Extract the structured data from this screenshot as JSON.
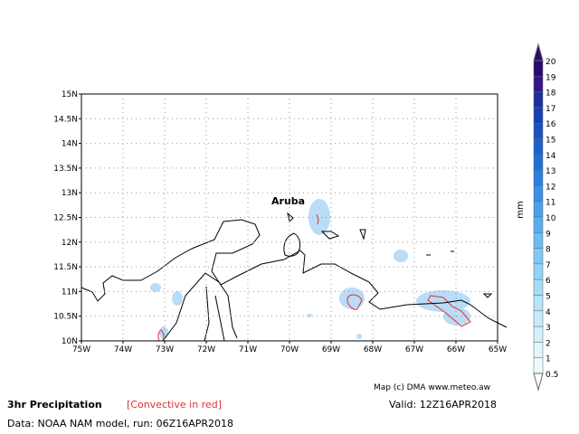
{
  "map": {
    "lat_ticks": [
      "15N",
      "14.5N",
      "14N",
      "13.5N",
      "13N",
      "12.5N",
      "12N",
      "11.5N",
      "11N",
      "10.5N",
      "10N"
    ],
    "lon_ticks": [
      "75W",
      "74W",
      "73W",
      "72W",
      "71W",
      "70W",
      "69W",
      "68W",
      "67W",
      "66W",
      "65W"
    ],
    "place_label": "Aruba",
    "credit": "Map (c) DMA www.meteo.aw"
  },
  "legend": {
    "unit": "mm",
    "labels": [
      "20",
      "19",
      "18",
      "17",
      "16",
      "15",
      "14",
      "13",
      "12",
      "11",
      "10",
      "9",
      "8",
      "7",
      "6",
      "5",
      "4",
      "3",
      "2",
      "1",
      "0.5"
    ],
    "colors": [
      "#2a0a6e",
      "#32168a",
      "#1d2f9c",
      "#1840b0",
      "#1a50c0",
      "#1d60cc",
      "#2070d8",
      "#2a80e0",
      "#3a90e6",
      "#4aa0ec",
      "#5aaef0",
      "#6cbcf2",
      "#7fc8f4",
      "#92d2f6",
      "#a5dcf8",
      "#b6e4fa",
      "#c6ecfb",
      "#d4f0fc",
      "#e2f5fd",
      "#eef9fe"
    ]
  },
  "footer": {
    "title": "3hr Precipitation",
    "convective": "[Convective in red]",
    "valid": "Valid: 12Z16APR2018",
    "source": "Data: NOAA NAM model, run: 06Z16APR2018"
  }
}
